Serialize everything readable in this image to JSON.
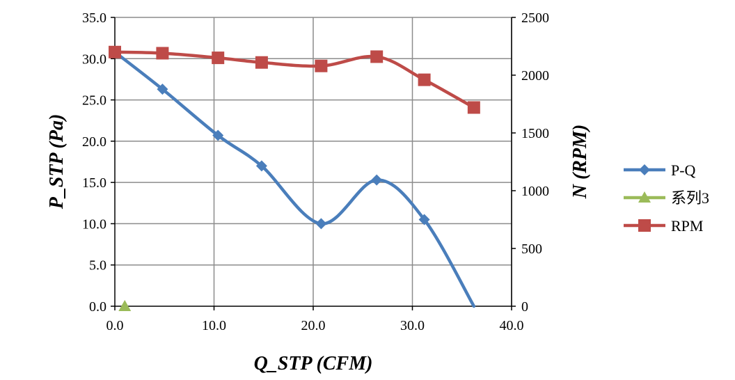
{
  "chart_data": {
    "type": "line",
    "title": "",
    "xlabel": "Q_STP (CFM)",
    "ylabel": "P_STP (Pa)",
    "y2label": "N (RPM)",
    "xlim": [
      0,
      40
    ],
    "ylim": [
      0,
      35
    ],
    "y2lim": [
      0,
      2500
    ],
    "x_ticks": [
      "0.0",
      "10.0",
      "20.0",
      "30.0",
      "40.0"
    ],
    "y_ticks": [
      "0.0",
      "5.0",
      "10.0",
      "15.0",
      "20.0",
      "25.0",
      "30.0",
      "35.0"
    ],
    "y2_ticks": [
      "0",
      "500",
      "1000",
      "1500",
      "2000",
      "2500"
    ],
    "grid": true,
    "smooth": true,
    "legend_position": "right",
    "series": [
      {
        "name": "P-Q",
        "axis": "left",
        "color": "#4a7ebb",
        "marker": "diamond",
        "points": [
          [
            0.0,
            30.8
          ],
          [
            4.8,
            26.3
          ],
          [
            10.4,
            20.7
          ],
          [
            14.8,
            17.0
          ],
          [
            20.8,
            10.0
          ],
          [
            26.4,
            15.3
          ],
          [
            31.2,
            10.5
          ],
          [
            36.2,
            0.0
          ]
        ],
        "marker_count": 7
      },
      {
        "name": "系列3",
        "axis": "left",
        "color": "#9bbb59",
        "marker": "triangle",
        "points": [
          [
            1.0,
            0.0
          ]
        ],
        "marker_count": 1
      },
      {
        "name": "RPM",
        "axis": "right",
        "color": "#be4b48",
        "marker": "square",
        "points": [
          [
            0.0,
            2200
          ],
          [
            4.8,
            2190
          ],
          [
            10.4,
            2150
          ],
          [
            14.8,
            2110
          ],
          [
            20.8,
            2080
          ],
          [
            26.4,
            2160
          ],
          [
            31.2,
            1960
          ],
          [
            36.2,
            1720
          ]
        ],
        "marker_count": 8
      }
    ]
  }
}
